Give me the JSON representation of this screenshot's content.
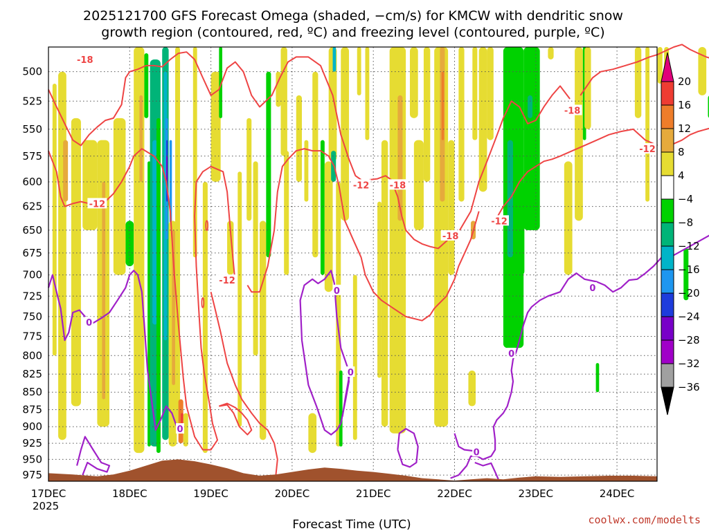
{
  "chart_data": {
    "type": "heatmap",
    "title_line1": "2025121700 GFS Forecast Omega (shaded, −cm/s) for KMCW with dendritic snow",
    "title_line2": "growth region (contoured, red, ºC) and freezing level (contoured, purple, ºC)",
    "xlabel": "Forecast Time (UTC)",
    "ylabel": "",
    "credit": "coolwx.com/modelts",
    "x_tick_labels": [
      "17DEC",
      "18DEC",
      "19DEC",
      "20DEC",
      "21DEC",
      "22DEC",
      "23DEC",
      "24DEC"
    ],
    "x_year_label": "2025",
    "x_range_days": [
      0,
      7.5
    ],
    "y_tick_labels": [
      "500",
      "525",
      "550",
      "575",
      "600",
      "625",
      "650",
      "675",
      "700",
      "725",
      "750",
      "775",
      "800",
      "825",
      "850",
      "875",
      "900",
      "925",
      "950",
      "975"
    ],
    "y_range_hpa": [
      480,
      985
    ],
    "y_scale": "log-pressure",
    "grid": true,
    "colorbar": {
      "labels": [
        "20",
        "16",
        "12",
        "8",
        "4",
        "−4",
        "−8",
        "−12",
        "−16",
        "−20",
        "−24",
        "−28",
        "−32",
        "−36"
      ],
      "bins": [
        {
          "range": "20+",
          "color": "#e0007a"
        },
        {
          "range": "16 to 20",
          "color": "#ee3c32"
        },
        {
          "range": "12 to 16",
          "color": "#ee7d2a"
        },
        {
          "range": "8 to 12",
          "color": "#e6aa3c"
        },
        {
          "range": "4 to 8",
          "color": "#e6dc32"
        },
        {
          "range": "-4 to 4",
          "color": "#ffffff"
        },
        {
          "range": "-8 to -4",
          "color": "#00d200"
        },
        {
          "range": "-12 to -8",
          "color": "#00b478"
        },
        {
          "range": "-16 to -12",
          "color": "#00b4c8"
        },
        {
          "range": "-20 to -16",
          "color": "#1e96f0"
        },
        {
          "range": "-24 to -20",
          "color": "#1e3cdc"
        },
        {
          "range": "-28 to -24",
          "color": "#7800c8"
        },
        {
          "range": "-32 to -28",
          "color": "#a000c8"
        },
        {
          "range": "-36 to -32",
          "color": "#a0a0a0"
        },
        {
          "range": "below -36",
          "color": "#000000"
        }
      ]
    },
    "contours": {
      "dgz_levels_c": [
        -12,
        -18
      ],
      "dgz_color": "#ee4444",
      "freezing_level_c": 0,
      "freezing_color": "#a020c8",
      "labels": [
        {
          "text": "-18",
          "color": "#ee4444",
          "day": 0.45,
          "hpa": 490
        },
        {
          "text": "-12",
          "color": "#ee4444",
          "day": 0.6,
          "hpa": 622
        },
        {
          "text": "-12",
          "color": "#ee4444",
          "day": 2.2,
          "hpa": 706
        },
        {
          "text": "-12",
          "color": "#ee4444",
          "day": 3.85,
          "hpa": 603
        },
        {
          "text": "-18",
          "color": "#ee4444",
          "day": 4.3,
          "hpa": 603
        },
        {
          "text": "-18",
          "color": "#ee4444",
          "day": 4.95,
          "hpa": 656
        },
        {
          "text": "-12",
          "color": "#ee4444",
          "day": 5.55,
          "hpa": 640
        },
        {
          "text": "-18",
          "color": "#ee4444",
          "day": 6.45,
          "hpa": 533
        },
        {
          "text": "-12",
          "color": "#ee4444",
          "day": 7.5,
          "hpa": 568
        },
        {
          "text": "0",
          "color": "#a020c8",
          "day": 0.5,
          "hpa": 757
        },
        {
          "text": "0",
          "color": "#a020c8",
          "day": 1.62,
          "hpa": 903
        },
        {
          "text": "0",
          "color": "#a020c8",
          "day": 3.55,
          "hpa": 718
        },
        {
          "text": "0",
          "color": "#a020c8",
          "day": 3.72,
          "hpa": 822
        },
        {
          "text": "0",
          "color": "#a020c8",
          "day": 5.27,
          "hpa": 938
        },
        {
          "text": "0",
          "color": "#a020c8",
          "day": 5.7,
          "hpa": 797
        },
        {
          "text": "0",
          "color": "#a020c8",
          "day": 6.7,
          "hpa": 715
        }
      ]
    }
  }
}
